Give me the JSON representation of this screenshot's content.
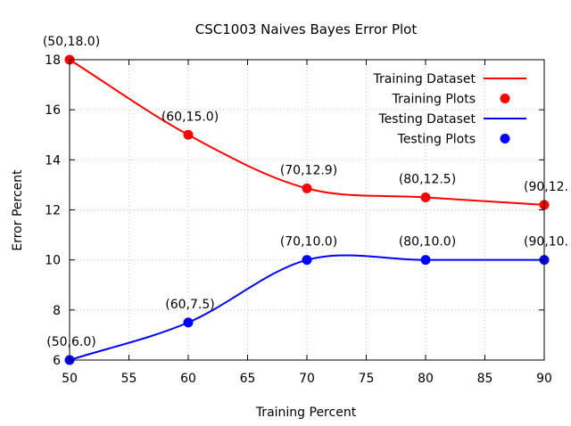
{
  "chart_data": {
    "type": "line",
    "title": "CSC1003 Naives Bayes Error Plot",
    "xlabel": "Training Percent",
    "ylabel": "Error Percent",
    "xlim": [
      50,
      90
    ],
    "ylim": [
      6,
      18
    ],
    "xticks": [
      50,
      55,
      60,
      65,
      70,
      75,
      80,
      85,
      90
    ],
    "yticks": [
      6,
      8,
      10,
      12,
      14,
      16,
      18
    ],
    "grid": true,
    "legend_position": "top-right",
    "x": [
      50,
      60,
      70,
      80,
      90
    ],
    "series": [
      {
        "key": "training",
        "line_name": "Training Dataset",
        "points_name": "Training Plots",
        "color": "#ff0000",
        "values": [
          18.0,
          15.0,
          12.86,
          12.5,
          12.2
        ],
        "point_labels": [
          "(50,18.0)",
          "(60,15.0)",
          "(70,12.9)",
          "(80,12.5)",
          "(90,12."
        ]
      },
      {
        "key": "testing",
        "line_name": "Testing Dataset",
        "points_name": "Testing Plots",
        "color": "#0000ff",
        "values": [
          6.0,
          7.5,
          10.0,
          10.0,
          10.0
        ],
        "point_labels": [
          "(50,6.0)",
          "(60,7.5)",
          "(70,10.0)",
          "(80,10.0)",
          "(90,10."
        ]
      }
    ]
  }
}
